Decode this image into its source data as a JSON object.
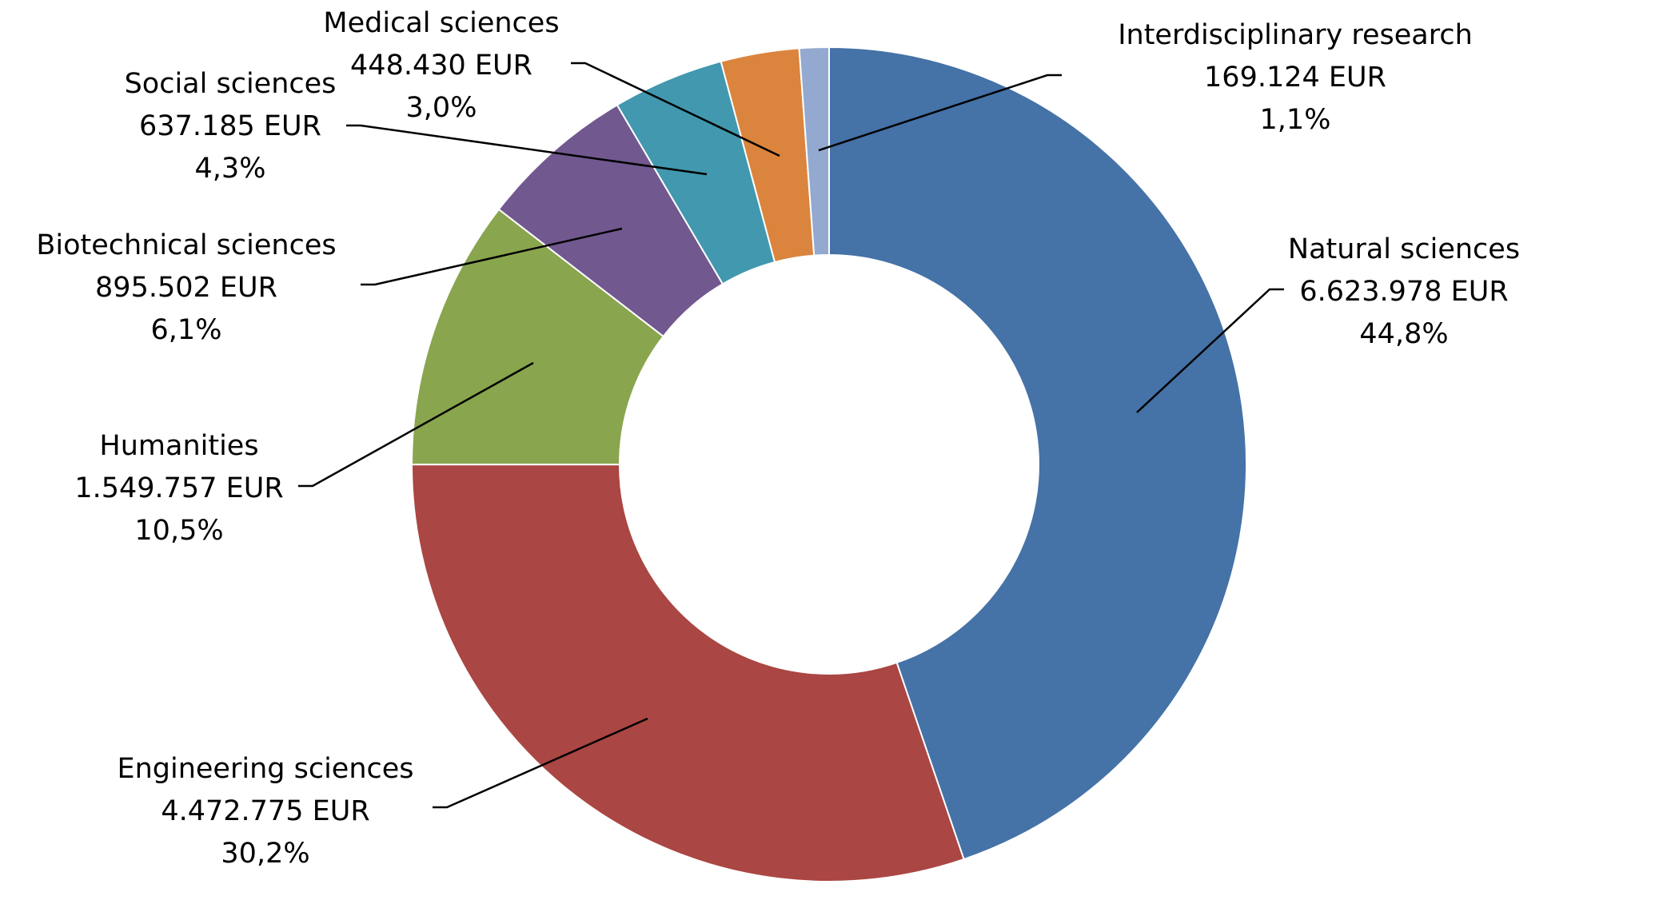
{
  "chart_data": {
    "type": "pie",
    "variant": "donut",
    "title": "",
    "currency": "EUR",
    "segments": [
      {
        "name": "Natural sciences",
        "value": 6623978,
        "value_label": "6.623.978 EUR",
        "percent_label": "44,8%",
        "color": "#4572A7"
      },
      {
        "name": "Engineering sciences",
        "value": 4472775,
        "value_label": "4.472.775 EUR",
        "percent_label": "30,2%",
        "color": "#AA4643"
      },
      {
        "name": "Humanities",
        "value": 1549757,
        "value_label": "1.549.757 EUR",
        "percent_label": "10,5%",
        "color": "#89A54E"
      },
      {
        "name": "Biotechnical sciences",
        "value": 895502,
        "value_label": "895.502 EUR",
        "percent_label": "6,1%",
        "color": "#71588F"
      },
      {
        "name": "Social sciences",
        "value": 637185,
        "value_label": "637.185 EUR",
        "percent_label": "4,3%",
        "color": "#4198AF"
      },
      {
        "name": "Medical sciences",
        "value": 448430,
        "value_label": "448.430 EUR",
        "percent_label": "3,0%",
        "color": "#DB843D"
      },
      {
        "name": "Interdisciplinary research",
        "value": 169124,
        "value_label": "169.124 EUR",
        "percent_label": "1,1%",
        "color": "#93A9CF"
      }
    ]
  }
}
